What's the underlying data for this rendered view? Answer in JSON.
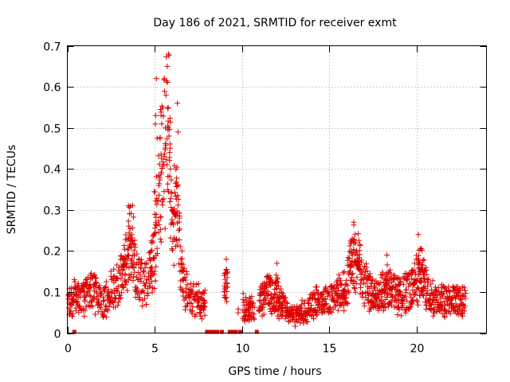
{
  "chart_data": {
    "type": "scatter",
    "title": "Day 186 of 2021, SRMTID for receiver exmt",
    "xlabel": "GPS time / hours",
    "ylabel": "SRMTID / TECUs",
    "xlim": [
      0,
      24
    ],
    "ylim": [
      0,
      0.7
    ],
    "x_ticks": [
      0,
      5,
      10,
      15,
      20
    ],
    "x_tick_labels": [
      "0",
      "5",
      "10",
      "15",
      "20"
    ],
    "y_ticks": [
      0,
      0.1,
      0.2,
      0.3,
      0.4,
      0.5,
      0.6,
      0.7
    ],
    "y_tick_labels": [
      "0",
      "0.1",
      "0.2",
      "0.3",
      "0.4",
      "0.5",
      "0.6",
      "0.7"
    ],
    "grid": true,
    "marker": "+",
    "series_color": "#dd0000",
    "gap_marker_color": "#dd0000",
    "data_gaps_hours": [
      0.4,
      8.0,
      8.15,
      8.3,
      8.45,
      8.6,
      8.85,
      9.3,
      9.5,
      9.65,
      9.9,
      10.85
    ],
    "envelope": {
      "x": [
        0,
        0.5,
        1.0,
        1.5,
        2.0,
        2.5,
        3.0,
        3.5,
        3.7,
        4.0,
        4.5,
        5.0,
        5.2,
        5.5,
        5.8,
        6.0,
        6.3,
        6.6,
        7.0,
        7.5,
        8.0,
        8.5,
        9.0,
        9.3,
        9.6,
        10.0,
        10.5,
        11.0,
        11.5,
        12.0,
        12.5,
        13.0,
        13.5,
        14.0,
        14.5,
        15.0,
        15.5,
        16.0,
        16.3,
        16.6,
        17.0,
        17.5,
        18.0,
        18.5,
        19.0,
        19.5,
        20.0,
        20.3,
        20.6,
        21.0,
        21.5,
        22.0,
        22.8
      ],
      "y": [
        0.07,
        0.09,
        0.09,
        0.1,
        0.07,
        0.1,
        0.13,
        0.2,
        0.24,
        0.13,
        0.12,
        0.18,
        0.35,
        0.42,
        0.5,
        0.3,
        0.28,
        0.13,
        0.09,
        0.08,
        0.07,
        0.07,
        0.1,
        0.12,
        0.07,
        0.06,
        0.06,
        0.07,
        0.1,
        0.08,
        0.06,
        0.04,
        0.05,
        0.07,
        0.08,
        0.08,
        0.09,
        0.12,
        0.18,
        0.17,
        0.12,
        0.09,
        0.1,
        0.11,
        0.09,
        0.1,
        0.13,
        0.16,
        0.1,
        0.08,
        0.08,
        0.08,
        0.08
      ]
    },
    "peaks": [
      {
        "x": 3.5,
        "y": 0.31
      },
      {
        "x": 5.1,
        "y": 0.62
      },
      {
        "x": 5.8,
        "y": 0.68
      },
      {
        "x": 6.3,
        "y": 0.56
      },
      {
        "x": 9.1,
        "y": 0.18
      },
      {
        "x": 12.0,
        "y": 0.17
      },
      {
        "x": 16.4,
        "y": 0.27
      },
      {
        "x": 18.3,
        "y": 0.19
      },
      {
        "x": 20.1,
        "y": 0.24
      }
    ]
  }
}
